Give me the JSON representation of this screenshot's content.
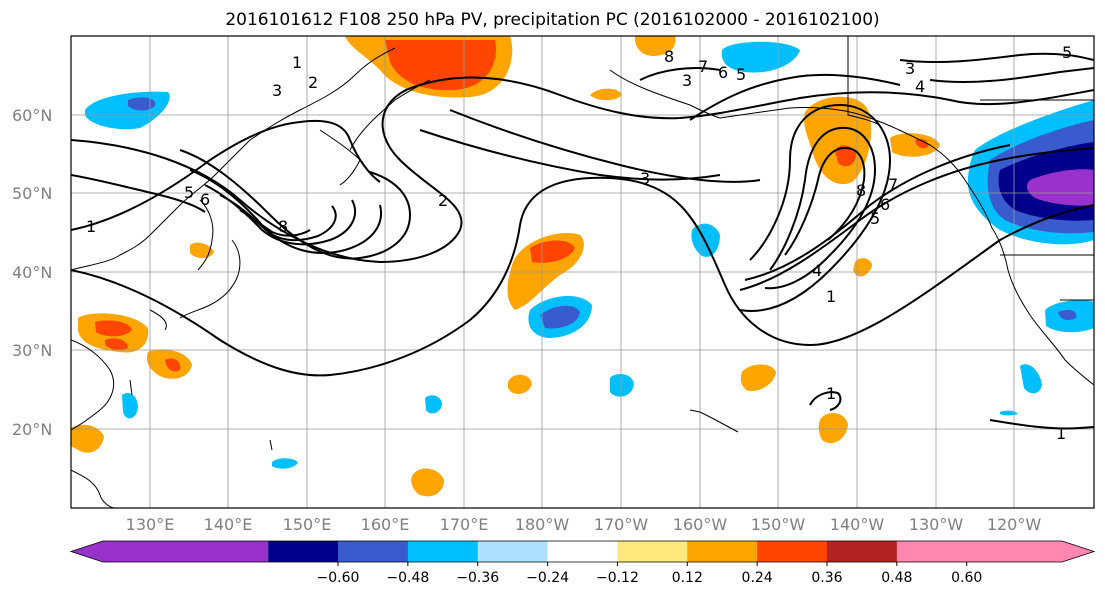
{
  "title": "2016101612 F108 250 hPa PV, precipitation PC (2016102000 - 2016102100)",
  "lat_labels": [
    "60°N",
    "50°N",
    "40°N",
    "30°N",
    "20°N"
  ],
  "lon_labels": [
    "130°E",
    "140°E",
    "150°E",
    "160°E",
    "170°E",
    "180°W",
    "170°W",
    "160°W",
    "150°W",
    "140°W",
    "130°W",
    "120°W"
  ],
  "colorbar": {
    "ticks": [
      "−0.60",
      "−0.48",
      "−0.36",
      "−0.24",
      "−0.12",
      "0.12",
      "0.24",
      "0.36",
      "0.48",
      "0.60"
    ],
    "colors": [
      "#9932cc",
      "#00008b",
      "#3a5bcd",
      "#00bfff",
      "#b0e0ff",
      "#ffffff",
      "#ffe97f",
      "#ffa500",
      "#ff4500",
      "#b22222",
      "#ff87b0"
    ]
  },
  "contour_labels": [
    {
      "text": "1",
      "id": "c1a"
    },
    {
      "text": "2",
      "id": "c2a"
    },
    {
      "text": "3",
      "id": "c3a"
    },
    {
      "text": "1",
      "id": "c1b"
    },
    {
      "text": "5",
      "id": "c5a"
    },
    {
      "text": "6",
      "id": "c6a"
    },
    {
      "text": "8",
      "id": "c8a"
    },
    {
      "text": "2",
      "id": "c2b"
    },
    {
      "text": "3",
      "id": "c3b"
    },
    {
      "text": "3",
      "id": "c3c"
    },
    {
      "text": "4",
      "id": "c4a"
    },
    {
      "text": "8",
      "id": "c8b"
    },
    {
      "text": "7",
      "id": "c7a"
    },
    {
      "text": "6",
      "id": "c6b"
    },
    {
      "text": "5",
      "id": "c5b"
    },
    {
      "text": "4",
      "id": "c4b"
    },
    {
      "text": "1",
      "id": "c1c"
    },
    {
      "text": "1",
      "id": "c1d"
    },
    {
      "text": "1",
      "id": "c1e"
    },
    {
      "text": "8",
      "id": "c8c"
    },
    {
      "text": "7",
      "id": "c7b"
    },
    {
      "text": "6",
      "id": "c6c"
    },
    {
      "text": "5",
      "id": "c5c"
    },
    {
      "text": "3",
      "id": "c3d"
    },
    {
      "text": "5",
      "id": "c5d"
    }
  ]
}
